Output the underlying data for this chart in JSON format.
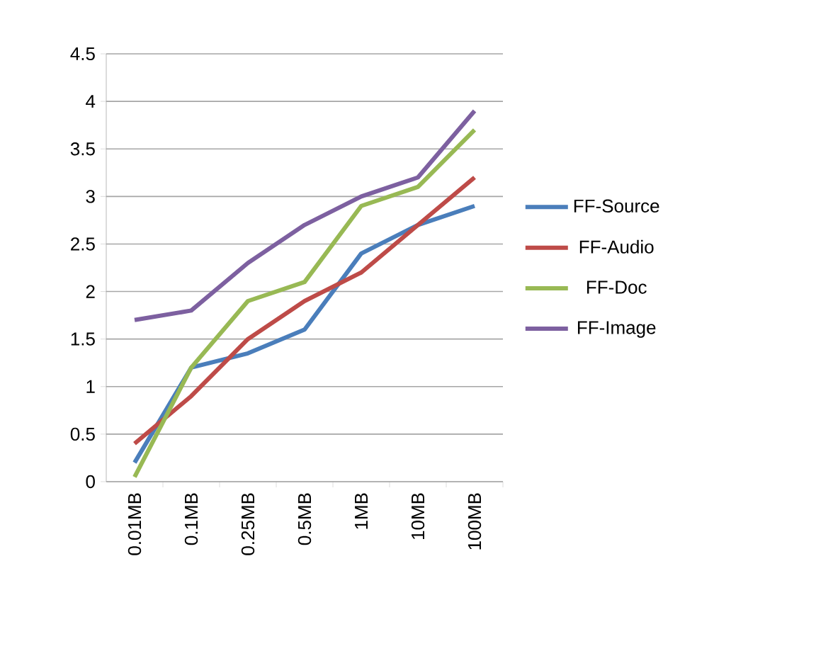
{
  "chart_data": {
    "type": "line",
    "categories": [
      "0.01MB",
      "0.1MB",
      "0.25MB",
      "0.5MB",
      "1MB",
      "10MB",
      "100MB"
    ],
    "series": [
      {
        "name": "FF-Source",
        "color": "#4a7ebb",
        "values": [
          0.2,
          1.2,
          1.35,
          1.6,
          2.4,
          2.7,
          2.9
        ]
      },
      {
        "name": "FF-Audio",
        "color": "#be4b48",
        "values": [
          0.4,
          0.9,
          1.5,
          1.9,
          2.2,
          2.7,
          3.2
        ]
      },
      {
        "name": "FF-Doc",
        "color": "#98b954",
        "values": [
          0.05,
          1.2,
          1.9,
          2.1,
          2.9,
          3.1,
          3.7
        ]
      },
      {
        "name": "FF-Image",
        "color": "#7d60a0",
        "values": [
          1.7,
          1.8,
          2.3,
          2.7,
          3.0,
          3.2,
          3.9
        ]
      }
    ],
    "ylim": [
      0,
      4.5
    ],
    "yticks": [
      0,
      0.5,
      1,
      1.5,
      2,
      2.5,
      3,
      3.5,
      4,
      4.5
    ],
    "grid": "y",
    "legend": "right",
    "marker": "none",
    "line_style": "solid"
  }
}
